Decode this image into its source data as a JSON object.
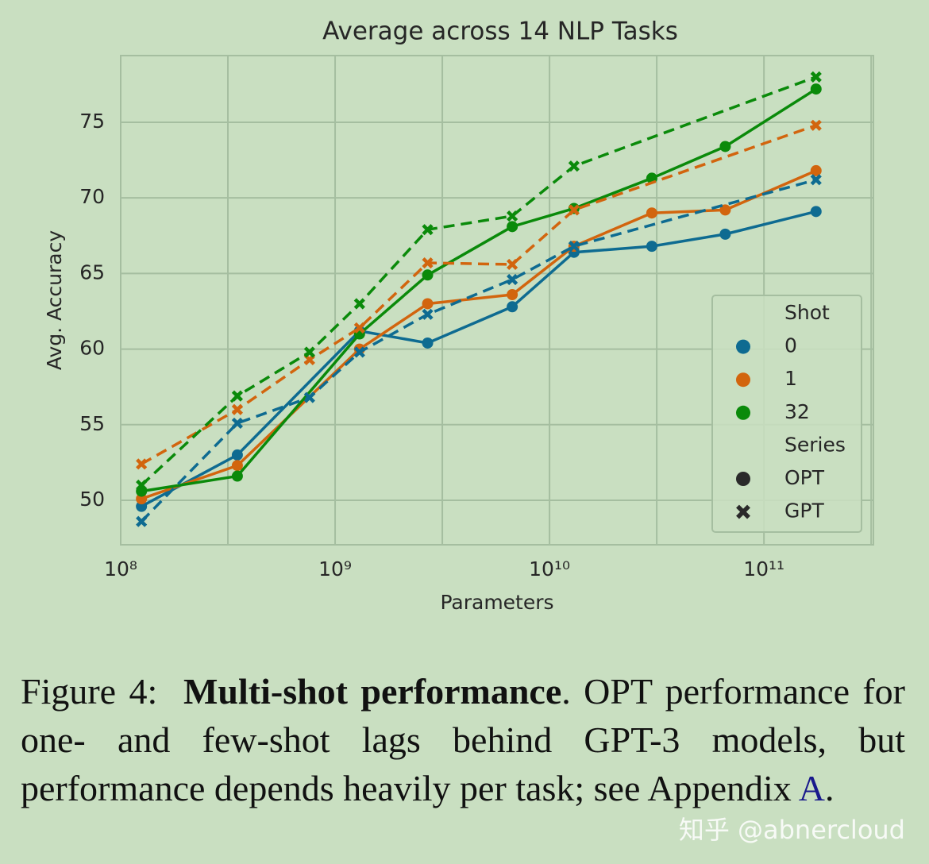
{
  "chart_data": {
    "type": "line",
    "title": "Average across 14 NLP Tasks",
    "xlabel": "Parameters",
    "ylabel": "Avg. Accuracy",
    "xscale": "log",
    "grid": true,
    "xlim": [
      100000000,
      324000000000
    ],
    "ylim": [
      47.06,
      79.41
    ],
    "xticks": [
      {
        "value": 100000000,
        "label": "10⁸"
      },
      {
        "value": 1000000000,
        "label": "10⁹"
      },
      {
        "value": 10000000000,
        "label": "10¹⁰"
      },
      {
        "value": 100000000000,
        "label": "10¹¹"
      }
    ],
    "xgrid": [
      316227766,
      3162277660,
      31622776600,
      316227766000
    ],
    "yticks": [
      50,
      55,
      60,
      65,
      70,
      75
    ],
    "legend": {
      "position": "lower right",
      "shot_title": "Shot",
      "shots": [
        {
          "label": "0",
          "color": "#0e6b91"
        },
        {
          "label": "1",
          "color": "#d2650e"
        },
        {
          "label": "32",
          "color": "#0a8a0a"
        }
      ],
      "series_title": "Series",
      "models": [
        {
          "label": "OPT",
          "marker": "circle",
          "dashed": false
        },
        {
          "label": "GPT",
          "marker": "x",
          "dashed": true
        }
      ]
    },
    "series": [
      {
        "shot": 0,
        "model": 0,
        "x": [
          125000000,
          350000000,
          1300000000,
          2700000000,
          6700000000,
          13000000000,
          30000000000,
          66000000000,
          175000000000
        ],
        "values": [
          49.6,
          53.0,
          61.2,
          60.4,
          62.8,
          66.4,
          66.8,
          67.6,
          69.1
        ]
      },
      {
        "shot": 1,
        "model": 0,
        "x": [
          125000000,
          350000000,
          1300000000,
          2700000000,
          6700000000,
          13000000000,
          30000000000,
          66000000000,
          175000000000
        ],
        "values": [
          50.1,
          52.3,
          60.0,
          63.0,
          63.6,
          66.8,
          69.0,
          69.2,
          71.8
        ]
      },
      {
        "shot": 2,
        "model": 0,
        "x": [
          125000000,
          350000000,
          1300000000,
          2700000000,
          6700000000,
          13000000000,
          30000000000,
          66000000000,
          175000000000
        ],
        "values": [
          50.6,
          51.6,
          61.0,
          64.9,
          68.1,
          69.3,
          71.3,
          73.4,
          77.2
        ]
      },
      {
        "shot": 0,
        "model": 1,
        "x": [
          125000000,
          350000000,
          760000000,
          1300000000,
          2700000000,
          6700000000,
          13000000000,
          175000000000
        ],
        "values": [
          48.6,
          55.1,
          56.8,
          59.8,
          62.3,
          64.6,
          66.8,
          71.2
        ]
      },
      {
        "shot": 1,
        "model": 1,
        "x": [
          125000000,
          350000000,
          760000000,
          1300000000,
          2700000000,
          6700000000,
          13000000000,
          175000000000
        ],
        "values": [
          52.4,
          56.0,
          59.3,
          61.4,
          65.7,
          65.6,
          69.2,
          74.8
        ]
      },
      {
        "shot": 2,
        "model": 1,
        "x": [
          125000000,
          350000000,
          760000000,
          1300000000,
          2700000000,
          6700000000,
          13000000000,
          175000000000
        ],
        "values": [
          51.0,
          56.9,
          59.8,
          63.0,
          67.9,
          68.8,
          72.1,
          78.0
        ]
      }
    ]
  },
  "caption": {
    "label": "Figure 4:",
    "bold": "Multi-shot performance",
    "text": ".  OPT performance for one- and few-shot lags behind GPT-3 models, but performance depends heavily per task; see Appendix ",
    "link": "A",
    "end": "."
  },
  "watermark": "知乎 @abnercloud"
}
